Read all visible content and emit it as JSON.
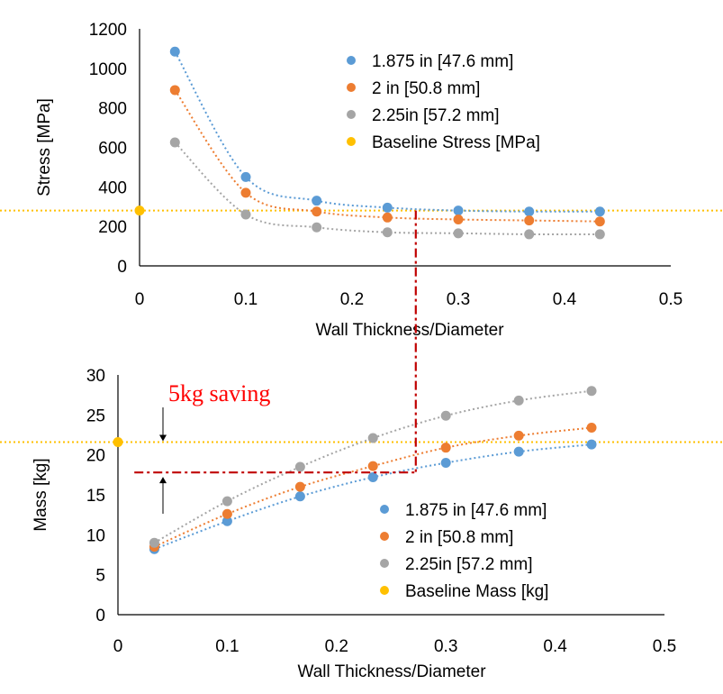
{
  "chart_data": [
    {
      "id": "stress",
      "type": "scatter",
      "title": "",
      "xlabel": "Wall Thickness/Diameter",
      "ylabel": "Stress [MPa]",
      "xlim": [
        0,
        0.5
      ],
      "ylim": [
        0,
        1200
      ],
      "xticks": [
        "0",
        "0.1",
        "0.2",
        "0.3",
        "0.4",
        "0.5"
      ],
      "yticks": [
        "0",
        "200",
        "400",
        "600",
        "800",
        "1000",
        "1200"
      ],
      "legend_position": "top-right",
      "series": [
        {
          "name": "1.875 in [47.6 mm]",
          "color": "#5B9BD5",
          "x": [
            0.0333,
            0.1,
            0.1667,
            0.2333,
            0.3,
            0.3667,
            0.4333
          ],
          "y": [
            1085,
            450,
            330,
            295,
            280,
            275,
            275
          ]
        },
        {
          "name": "2 in [50.8 mm]",
          "color": "#ED7D31",
          "x": [
            0.0333,
            0.1,
            0.1667,
            0.2333,
            0.3,
            0.3667,
            0.4333
          ],
          "y": [
            890,
            370,
            275,
            245,
            235,
            230,
            225
          ]
        },
        {
          "name": "2.25in [57.2 mm]",
          "color": "#A5A5A5",
          "x": [
            0.0333,
            0.1,
            0.1667,
            0.2333,
            0.3,
            0.3667,
            0.4333
          ],
          "y": [
            625,
            260,
            195,
            170,
            165,
            160,
            160
          ]
        },
        {
          "name": "Baseline Stress [MPa]",
          "color": "#FFC000",
          "x": [
            0
          ],
          "y": [
            280
          ],
          "baseline": true
        }
      ]
    },
    {
      "id": "mass",
      "type": "scatter",
      "title": "",
      "xlabel": "Wall Thickness/Diameter",
      "ylabel": "Mass [kg]",
      "xlim": [
        0,
        0.5
      ],
      "ylim": [
        0,
        30
      ],
      "xticks": [
        "0",
        "0.1",
        "0.2",
        "0.3",
        "0.4",
        "0.5"
      ],
      "yticks": [
        "0",
        "5",
        "10",
        "15",
        "20",
        "25",
        "30"
      ],
      "legend_position": "bottom-right",
      "series": [
        {
          "name": "1.875 in [47.6 mm]",
          "color": "#5B9BD5",
          "x": [
            0.0333,
            0.1,
            0.1667,
            0.2333,
            0.3,
            0.3667,
            0.4333
          ],
          "y": [
            8.2,
            11.7,
            14.8,
            17.2,
            19.0,
            20.4,
            21.3
          ]
        },
        {
          "name": "2 in [50.8 mm]",
          "color": "#ED7D31",
          "x": [
            0.0333,
            0.1,
            0.1667,
            0.2333,
            0.3,
            0.3667,
            0.4333
          ],
          "y": [
            8.5,
            12.6,
            16.0,
            18.6,
            20.9,
            22.4,
            23.4
          ]
        },
        {
          "name": "2.25in [57.2 mm]",
          "color": "#A5A5A5",
          "x": [
            0.0333,
            0.1,
            0.1667,
            0.2333,
            0.3,
            0.3667,
            0.4333
          ],
          "y": [
            9.0,
            14.2,
            18.5,
            22.1,
            24.9,
            26.8,
            28.0
          ]
        },
        {
          "name": "Baseline Mass [kg]",
          "color": "#FFC000",
          "x": [
            0
          ],
          "y": [
            21.6
          ],
          "baseline": true
        }
      ],
      "annotation": {
        "text": "5kg saving",
        "color": "#FF0000"
      }
    }
  ],
  "annotation_links": {
    "color": "#C00000",
    "vertical_x": 0.26,
    "horizontal_mass": 17.8
  }
}
